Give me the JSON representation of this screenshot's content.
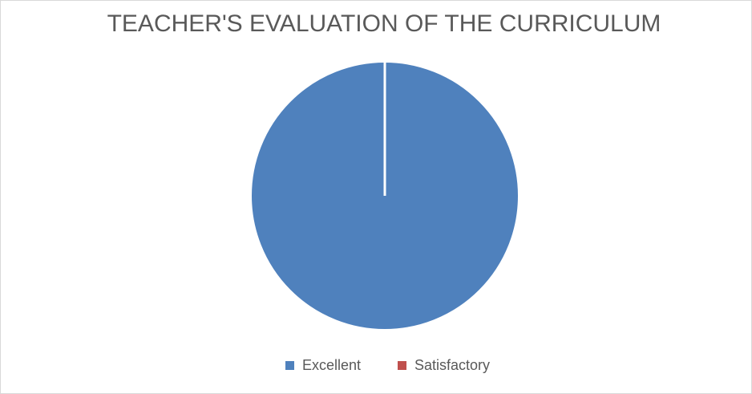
{
  "chart_data": {
    "type": "pie",
    "title": "TEACHER'S EVALUATION OF THE CURRICULUM",
    "categories": [
      "Excellent",
      "Satisfactory"
    ],
    "values": [
      100,
      0
    ],
    "colors": [
      "#4f81bd",
      "#c0504d"
    ],
    "legend": "bottom"
  }
}
